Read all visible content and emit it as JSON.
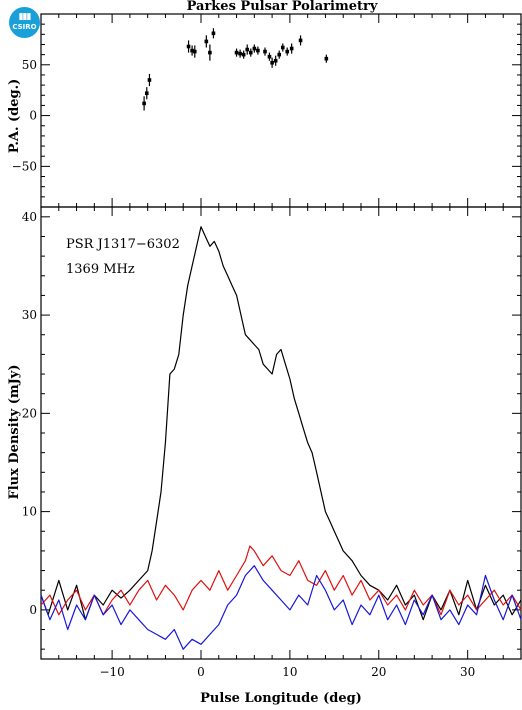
{
  "logo": {
    "text": "CSIRO"
  },
  "chart_data": [
    {
      "type": "scatter",
      "title": "Parkes Pulsar Polarimetry",
      "ylabel": "P.A. (deg.)",
      "xlim": [
        -18,
        36
      ],
      "ylim": [
        -90,
        100
      ],
      "yticks": [
        -50,
        0,
        50
      ],
      "points": [
        {
          "x": -6.4,
          "y": 12,
          "err": 7
        },
        {
          "x": -6.1,
          "y": 22,
          "err": 6
        },
        {
          "x": -5.8,
          "y": 35,
          "err": 6
        },
        {
          "x": -1.4,
          "y": 68,
          "err": 6
        },
        {
          "x": -1.0,
          "y": 64,
          "err": 5
        },
        {
          "x": -0.7,
          "y": 63,
          "err": 6
        },
        {
          "x": 0.6,
          "y": 73,
          "err": 6
        },
        {
          "x": 1.0,
          "y": 62,
          "err": 8
        },
        {
          "x": 1.4,
          "y": 81,
          "err": 5
        },
        {
          "x": 4.0,
          "y": 62,
          "err": 4
        },
        {
          "x": 4.4,
          "y": 61,
          "err": 4
        },
        {
          "x": 4.8,
          "y": 60,
          "err": 4
        },
        {
          "x": 5.2,
          "y": 65,
          "err": 5
        },
        {
          "x": 5.6,
          "y": 62,
          "err": 4
        },
        {
          "x": 6.0,
          "y": 66,
          "err": 4
        },
        {
          "x": 6.4,
          "y": 64,
          "err": 4
        },
        {
          "x": 7.2,
          "y": 63,
          "err": 4
        },
        {
          "x": 7.7,
          "y": 58,
          "err": 4
        },
        {
          "x": 8.0,
          "y": 52,
          "err": 5
        },
        {
          "x": 8.4,
          "y": 54,
          "err": 5
        },
        {
          "x": 8.8,
          "y": 60,
          "err": 4
        },
        {
          "x": 9.2,
          "y": 67,
          "err": 4
        },
        {
          "x": 9.7,
          "y": 63,
          "err": 4
        },
        {
          "x": 10.2,
          "y": 66,
          "err": 5
        },
        {
          "x": 11.2,
          "y": 74,
          "err": 5
        },
        {
          "x": 14.1,
          "y": 56,
          "err": 4
        }
      ]
    },
    {
      "type": "line",
      "xlabel": "Pulse Longitude (deg)",
      "ylabel": "Flux Density (mJy)",
      "xlim": [
        -18,
        36
      ],
      "ylim": [
        -5,
        41
      ],
      "xticks": [
        -10,
        0,
        10,
        20,
        30
      ],
      "yticks": [
        0,
        10,
        20,
        30,
        40
      ],
      "annotations": [
        "PSR J1317−6302",
        "1369 MHz"
      ],
      "series": [
        {
          "color": "#000000",
          "points": [
            [
              -18,
              1.5
            ],
            [
              -17.2,
              -0.5
            ],
            [
              -16,
              3
            ],
            [
              -15,
              0
            ],
            [
              -14,
              2.5
            ],
            [
              -13,
              -1
            ],
            [
              -12,
              1.5
            ],
            [
              -11,
              0.5
            ],
            [
              -10,
              2
            ],
            [
              -9,
              1.2
            ],
            [
              -8,
              2
            ],
            [
              -7,
              3
            ],
            [
              -6,
              4
            ],
            [
              -5.5,
              6
            ],
            [
              -5,
              9
            ],
            [
              -4.5,
              12
            ],
            [
              -4,
              17
            ],
            [
              -3.5,
              24
            ],
            [
              -3,
              24.5
            ],
            [
              -2.5,
              26
            ],
            [
              -2,
              30
            ],
            [
              -1.5,
              33
            ],
            [
              -1,
              35
            ],
            [
              -0.5,
              37
            ],
            [
              0,
              39
            ],
            [
              0.5,
              38
            ],
            [
              1,
              37
            ],
            [
              1.5,
              37.5
            ],
            [
              2,
              36.5
            ],
            [
              2.5,
              35
            ],
            [
              3,
              34
            ],
            [
              3.5,
              33
            ],
            [
              4,
              32
            ],
            [
              4.5,
              30
            ],
            [
              5,
              28
            ],
            [
              5.5,
              27.5
            ],
            [
              6,
              27
            ],
            [
              6.5,
              26.5
            ],
            [
              7,
              25
            ],
            [
              7.5,
              24.5
            ],
            [
              8,
              24
            ],
            [
              8.5,
              26
            ],
            [
              9,
              26.5
            ],
            [
              9.5,
              25
            ],
            [
              10,
              23.5
            ],
            [
              10.5,
              21.5
            ],
            [
              11,
              20
            ],
            [
              11.5,
              18.5
            ],
            [
              12,
              17
            ],
            [
              12.5,
              16
            ],
            [
              13,
              14
            ],
            [
              13.5,
              12
            ],
            [
              14,
              10
            ],
            [
              14.5,
              9
            ],
            [
              15,
              8
            ],
            [
              15.5,
              7
            ],
            [
              16,
              6
            ],
            [
              17,
              5
            ],
            [
              18,
              3.5
            ],
            [
              19,
              2.5
            ],
            [
              20,
              2
            ],
            [
              21,
              1
            ],
            [
              22,
              2.5
            ],
            [
              23,
              0.5
            ],
            [
              24,
              1.5
            ],
            [
              25,
              -1
            ],
            [
              26,
              1.5
            ],
            [
              27,
              0
            ],
            [
              28,
              2
            ],
            [
              29,
              -0.5
            ],
            [
              30,
              3
            ],
            [
              31,
              0
            ],
            [
              32,
              2.5
            ],
            [
              33,
              0.5
            ],
            [
              34,
              1.5
            ],
            [
              35,
              -0.5
            ],
            [
              36,
              1
            ]
          ]
        },
        {
          "color": "#e01010",
          "points": [
            [
              -18,
              0.5
            ],
            [
              -17,
              1.5
            ],
            [
              -16,
              -0.5
            ],
            [
              -15,
              1
            ],
            [
              -14,
              2
            ],
            [
              -13,
              0
            ],
            [
              -12,
              1.5
            ],
            [
              -11,
              -0.5
            ],
            [
              -10,
              1
            ],
            [
              -9,
              2
            ],
            [
              -8,
              0.5
            ],
            [
              -7,
              2
            ],
            [
              -6,
              3
            ],
            [
              -5,
              1
            ],
            [
              -4,
              2.5
            ],
            [
              -3,
              1.5
            ],
            [
              -2,
              0
            ],
            [
              -1,
              2
            ],
            [
              0,
              3
            ],
            [
              1,
              2
            ],
            [
              2,
              4
            ],
            [
              3,
              2
            ],
            [
              4,
              3.5
            ],
            [
              5,
              5
            ],
            [
              5.5,
              6.5
            ],
            [
              6,
              6
            ],
            [
              7,
              4.5
            ],
            [
              8,
              5.5
            ],
            [
              9,
              4
            ],
            [
              10,
              3.5
            ],
            [
              11,
              5
            ],
            [
              12,
              3
            ],
            [
              13,
              2.5
            ],
            [
              14,
              4
            ],
            [
              15,
              2
            ],
            [
              16,
              3.5
            ],
            [
              17,
              1.5
            ],
            [
              18,
              3
            ],
            [
              19,
              1
            ],
            [
              20,
              2
            ],
            [
              21,
              0.5
            ],
            [
              22,
              1.5
            ],
            [
              23,
              0
            ],
            [
              24,
              2
            ],
            [
              25,
              0.5
            ],
            [
              26,
              1.5
            ],
            [
              27,
              -0.5
            ],
            [
              28,
              2
            ],
            [
              29,
              0.5
            ],
            [
              30,
              1.5
            ],
            [
              31,
              0
            ],
            [
              32,
              1
            ],
            [
              33,
              2
            ],
            [
              34,
              0.5
            ],
            [
              35,
              1.5
            ],
            [
              36,
              0
            ]
          ]
        },
        {
          "color": "#1818d8",
          "points": [
            [
              -18,
              1.5
            ],
            [
              -17,
              -1
            ],
            [
              -16,
              1
            ],
            [
              -15,
              -2
            ],
            [
              -14,
              0.5
            ],
            [
              -13,
              -1
            ],
            [
              -12,
              1.5
            ],
            [
              -11,
              -0.5
            ],
            [
              -10,
              0.5
            ],
            [
              -9,
              -1.5
            ],
            [
              -8,
              0
            ],
            [
              -7,
              -1
            ],
            [
              -6,
              -2
            ],
            [
              -5,
              -2.5
            ],
            [
              -4,
              -3
            ],
            [
              -3,
              -2
            ],
            [
              -2,
              -4
            ],
            [
              -1,
              -3
            ],
            [
              0,
              -3.5
            ],
            [
              1,
              -2.5
            ],
            [
              2,
              -1.5
            ],
            [
              3,
              0.5
            ],
            [
              4,
              1.5
            ],
            [
              5,
              3.5
            ],
            [
              6,
              4.5
            ],
            [
              7,
              3
            ],
            [
              8,
              2
            ],
            [
              9,
              1
            ],
            [
              10,
              0
            ],
            [
              11,
              1.5
            ],
            [
              12,
              0.5
            ],
            [
              13,
              3.5
            ],
            [
              14,
              2
            ],
            [
              15,
              0
            ],
            [
              16,
              1
            ],
            [
              17,
              -1.5
            ],
            [
              18,
              0.5
            ],
            [
              19,
              -0.5
            ],
            [
              20,
              1.5
            ],
            [
              21,
              -1
            ],
            [
              22,
              0.5
            ],
            [
              23,
              -1.5
            ],
            [
              24,
              1
            ],
            [
              25,
              -0.5
            ],
            [
              26,
              1.5
            ],
            [
              27,
              -1
            ],
            [
              28,
              0
            ],
            [
              29,
              -1.5
            ],
            [
              30,
              0.5
            ],
            [
              31,
              -0.5
            ],
            [
              32,
              3.5
            ],
            [
              33,
              1
            ],
            [
              34,
              -1
            ],
            [
              35,
              1.5
            ],
            [
              36,
              -1
            ]
          ]
        }
      ]
    }
  ]
}
